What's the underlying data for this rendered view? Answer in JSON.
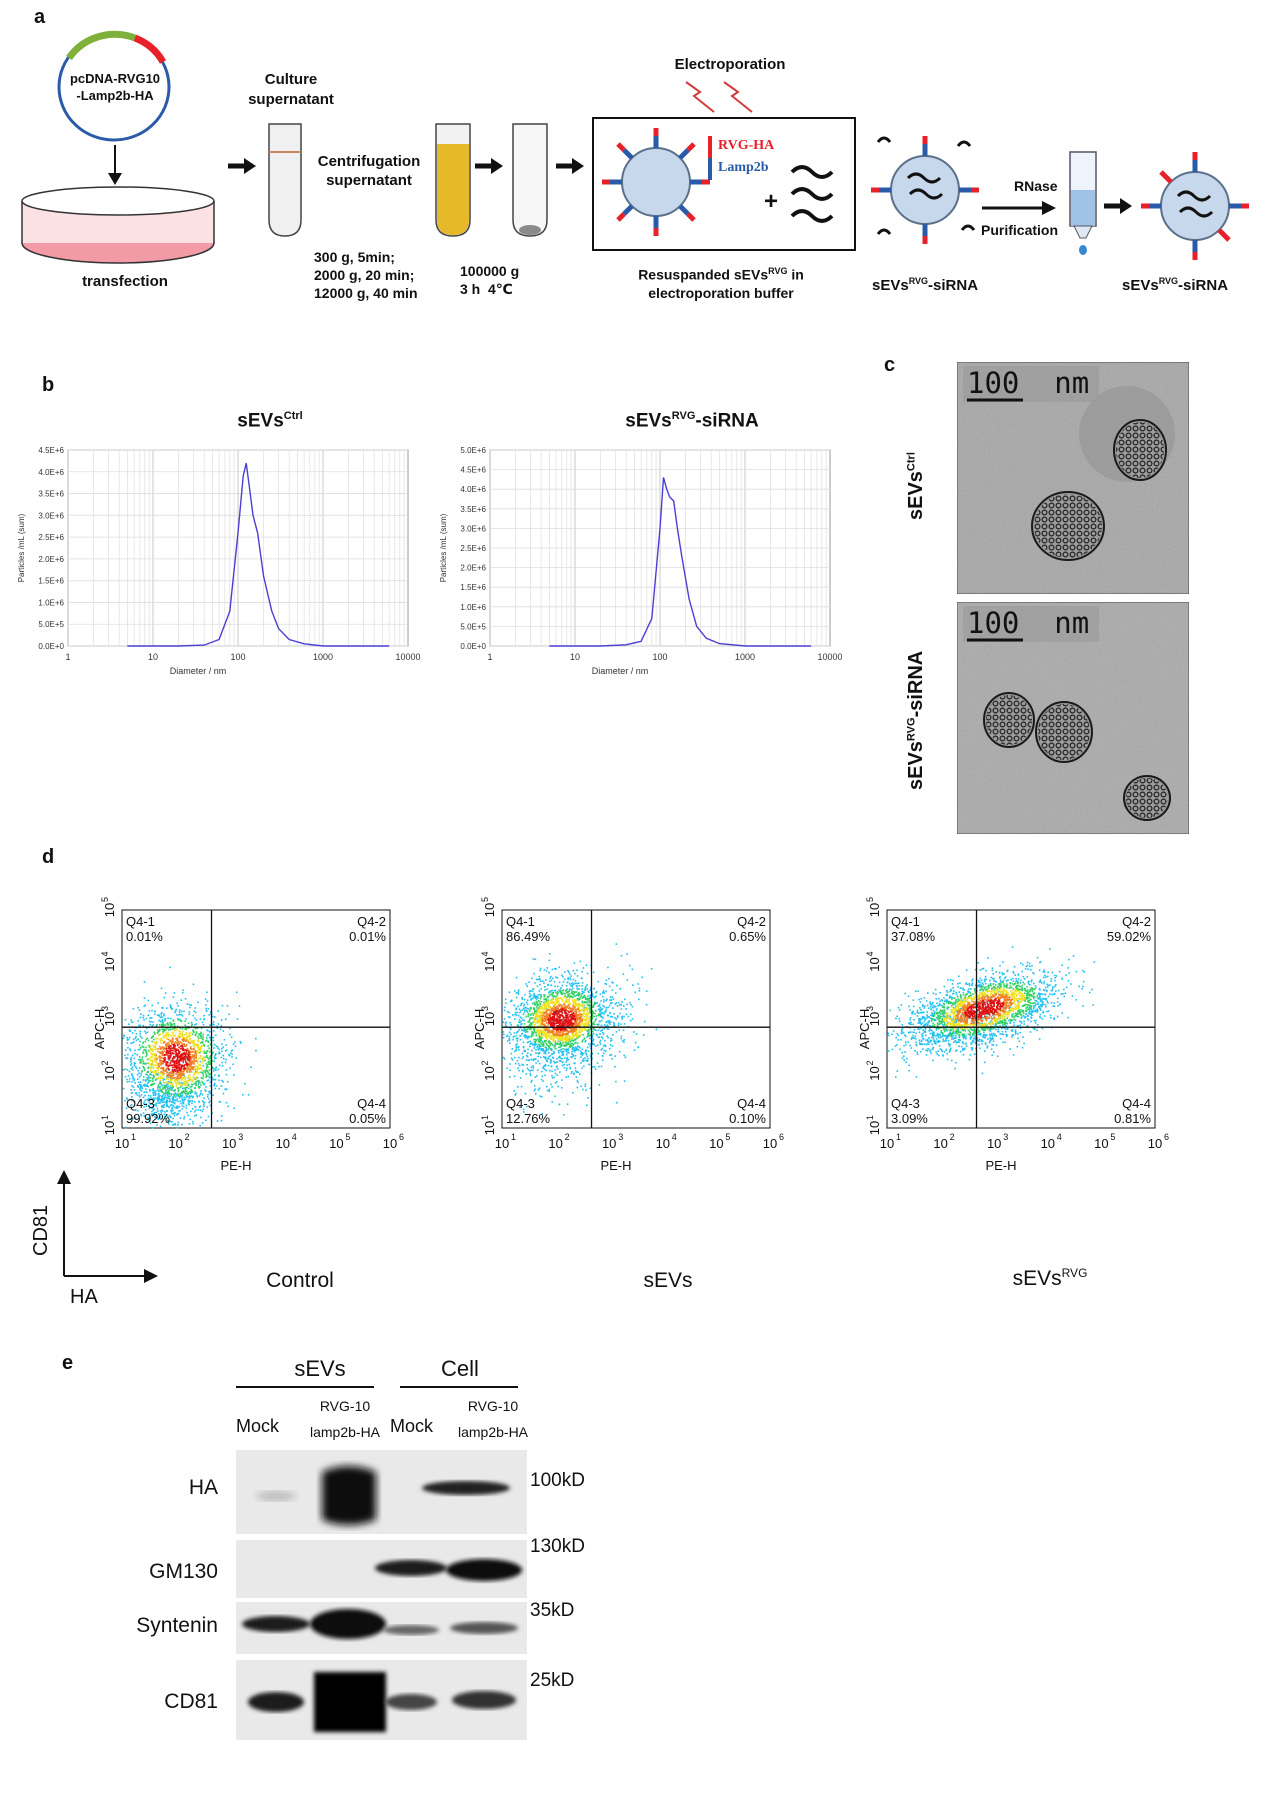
{
  "panel_labels": {
    "a": "a",
    "b": "b",
    "c": "c",
    "d": "d",
    "e": "e"
  },
  "panel_a": {
    "plasmid": "pcDNA-RVG10\n-Lamp2b-HA",
    "transfection": "transfection",
    "culture_supernatant": "Culture\nsupernatant",
    "centrifugation_supernatant": "Centrifugation\nsupernatant",
    "centrifuge_steps": "300 g, 5min;\n2000 g, 20 min;\n12000 g, 40 min",
    "ultracentrifuge": "100000 g\n3 h  4℃",
    "electroporation": "Electroporation",
    "rvg_ha": "RVG-HA",
    "lamp2b": "Lamp2b",
    "plus": "+",
    "resuspended_caption": "Resuspanded sEVs",
    "resuspended_sup": "RVG",
    "resuspended_caption_tail": " in\nelectroporation buffer",
    "sevs_base": "sEVs",
    "sevs_sup": "RVG",
    "sevs_tail": "-siRNA",
    "rnase": "RNase",
    "purification": "Purification",
    "colors": {
      "rvg": "#e8202a",
      "lamp2b": "#2a5ba8",
      "vesicle": "#c8d8ec",
      "pellet_tube": "#e6b92a"
    }
  },
  "panel_b": {
    "charts": [
      {
        "title_base": "sEVs",
        "title_sup": "Ctrl",
        "title_tail": "",
        "yticks": [
          "4.5E+6",
          "4.0E+6",
          "3.5E+6",
          "3.0E+6",
          "2.5E+6",
          "2.0E+6",
          "1.5E+6",
          "1.0E+6",
          "5.0E+5",
          "0.0E+0"
        ],
        "ymax": 4500000
      },
      {
        "title_base": "sEVs",
        "title_sup": "RVG",
        "title_tail": "-siRNA",
        "yticks": [
          "5.0E+6",
          "4.5E+6",
          "4.0E+6",
          "3.5E+6",
          "3.0E+6",
          "2.5E+6",
          "2.0E+6",
          "1.5E+6",
          "1.0E+6",
          "5.0E+5",
          "0.0E+0"
        ],
        "ymax": 5000000
      }
    ],
    "xticks": [
      "1",
      "10",
      "100",
      "1000",
      "10000"
    ],
    "xlabel": "Diameter / nm",
    "ylabel": "Particles /mL (sum)"
  },
  "chart_data": [
    {
      "type": "line",
      "title": "sEVsCtrl",
      "xlabel": "Diameter / nm",
      "ylabel": "Particles /mL (sum)",
      "x_scale": "log",
      "xlim": [
        1,
        10000
      ],
      "ylim": [
        0,
        4500000
      ],
      "x": [
        5,
        20,
        40,
        60,
        80,
        100,
        115,
        125,
        135,
        150,
        170,
        200,
        250,
        300,
        400,
        600,
        1000,
        6000
      ],
      "series": [
        {
          "values": [
            0,
            0,
            20000,
            150000,
            800000,
            2600000,
            3900000,
            4200000,
            3700000,
            3000000,
            2600000,
            1600000,
            800000,
            400000,
            150000,
            50000,
            0,
            0
          ]
        }
      ]
    },
    {
      "type": "line",
      "title": "sEVsRVG-siRNA",
      "xlabel": "Diameter / nm",
      "ylabel": "Particles /mL (sum)",
      "x_scale": "log",
      "xlim": [
        1,
        10000
      ],
      "ylim": [
        0,
        5000000
      ],
      "x": [
        5,
        20,
        40,
        60,
        80,
        100,
        110,
        120,
        130,
        145,
        160,
        180,
        220,
        270,
        350,
        500,
        1000,
        6000
      ],
      "series": [
        {
          "values": [
            0,
            0,
            30000,
            120000,
            700000,
            3000000,
            4300000,
            4000000,
            3800000,
            3700000,
            3000000,
            2300000,
            1200000,
            500000,
            200000,
            60000,
            0,
            0
          ]
        }
      ]
    }
  ],
  "panel_c": {
    "scalebar": "100  nm",
    "row1_base": "sEVs",
    "row1_sup": "Ctrl",
    "row1_tail": "",
    "row2_base": "sEVs",
    "row2_sup": "RVG",
    "row2_tail": "-siRNA"
  },
  "panel_d": {
    "plots": [
      {
        "title_base": "Control",
        "title_sup": "",
        "q1": "Q4-1\n0.01%",
        "q2": "Q4-2\n0.01%",
        "q3": "Q4-3\n99.92%",
        "q4": "Q4-4\n0.05%"
      },
      {
        "title_base": "sEVs",
        "title_sup": "",
        "q1": "Q4-1\n86.49%",
        "q2": "Q4-2\n0.65%",
        "q3": "Q4-3\n12.76%",
        "q4": "Q4-4\n0.10%"
      },
      {
        "title_base": "sEVs",
        "title_sup": "RVG",
        "q1": "Q4-1\n37.08%",
        "q2": "Q4-2\n59.02%",
        "q3": "Q4-3\n3.09%",
        "q4": "Q4-4\n0.81%"
      }
    ],
    "xlabel": "PE-H",
    "ylabel": "APC-H",
    "axis_y": "CD81",
    "axis_x": "HA"
  },
  "panel_e": {
    "group_sevs": "sEVs",
    "group_cell": "Cell",
    "lane_mock": "Mock",
    "lane_rvg_line1": "RVG-10",
    "lane_rvg_line2": "lamp2b-HA",
    "rows": [
      {
        "label": "HA",
        "size": "100kD"
      },
      {
        "label": "GM130",
        "size": "130kD"
      },
      {
        "label": "Syntenin",
        "size": "35kD"
      },
      {
        "label": "CD81",
        "size": "25kD"
      }
    ]
  }
}
